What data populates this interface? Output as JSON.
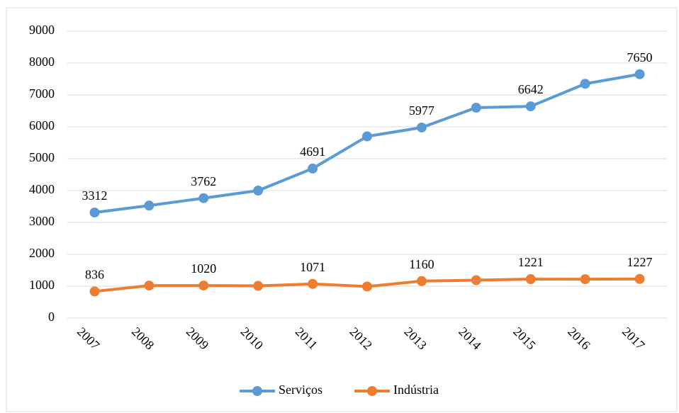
{
  "chart_data": {
    "type": "line",
    "categories": [
      "2007",
      "2008",
      "2009",
      "2010",
      "2011",
      "2012",
      "2013",
      "2014",
      "2015",
      "2016",
      "2017"
    ],
    "series": [
      {
        "name": "Serviços",
        "color": "#5b9bd5",
        "values": [
          3312,
          3530,
          3762,
          4000,
          4691,
          5700,
          5977,
          6600,
          6642,
          7350,
          7650
        ],
        "value_labels": [
          "3312",
          null,
          "3762",
          null,
          "4691",
          null,
          "5977",
          null,
          "6642",
          null,
          "7650"
        ]
      },
      {
        "name": "Indústria",
        "color": "#ed7d31",
        "values": [
          836,
          1020,
          1020,
          1010,
          1071,
          990,
          1160,
          1190,
          1221,
          1220,
          1227
        ],
        "value_labels": [
          "836",
          null,
          "1020",
          null,
          "1071",
          null,
          "1160",
          null,
          "1221",
          null,
          "1227"
        ]
      }
    ],
    "ylim": [
      0,
      9000
    ],
    "yticks": [
      0,
      1000,
      2000,
      3000,
      4000,
      5000,
      6000,
      7000,
      8000,
      9000
    ],
    "grid": true,
    "legend": "bottom"
  }
}
